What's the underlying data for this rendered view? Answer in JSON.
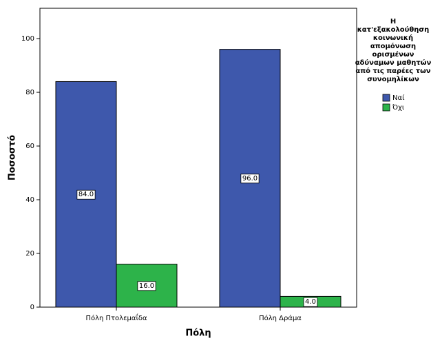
{
  "chart_data": {
    "type": "bar",
    "x_label": "Πόλη",
    "y_label": "Ποσοστό",
    "categories": [
      "Πόλη Πτολεμαΐδα",
      "Πόλη Δράμα"
    ],
    "legend_title": "Η κατ'εξακολούθηση κοινωνική απομόνωση ορισμένων αδύναμων μαθητών από τις παρέες των συνομηλίκων",
    "legend_position": "right",
    "series": [
      {
        "name": "Ναί",
        "color": "#3e58ac",
        "values": [
          84,
          96
        ],
        "value_labels": [
          "84.0",
          "96.0"
        ]
      },
      {
        "name": "Όχι",
        "color": "#2db34a",
        "values": [
          16,
          4
        ],
        "value_labels": [
          "16.0",
          "4.0"
        ]
      }
    ],
    "ylim": [
      0,
      111.3
    ],
    "yticks": [
      0,
      20,
      40,
      60,
      80,
      100
    ],
    "grid": false
  }
}
